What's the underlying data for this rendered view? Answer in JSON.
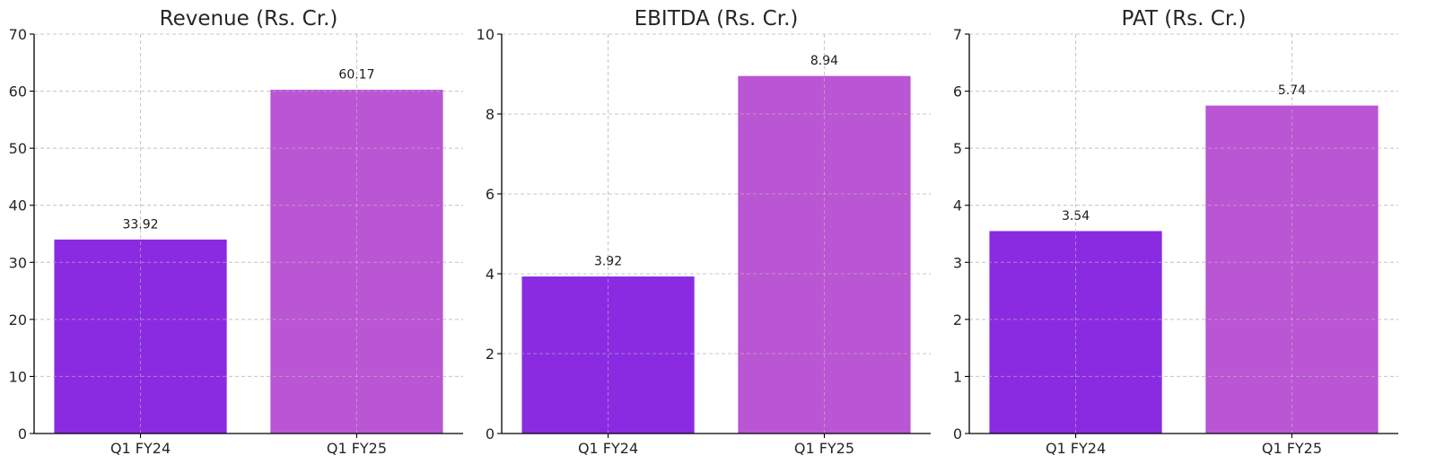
{
  "chart_data": [
    {
      "type": "bar",
      "title": "Revenue (Rs. Cr.)",
      "categories": [
        "Q1 FY24",
        "Q1 FY25"
      ],
      "values": [
        33.92,
        60.17
      ],
      "value_labels": [
        "33.92",
        "60.17"
      ],
      "ylim": [
        0,
        70
      ],
      "yticks": [
        0,
        10,
        20,
        30,
        40,
        50,
        60,
        70
      ],
      "colors": [
        "#8a2be2",
        "#ba55d3"
      ],
      "grid": true,
      "legend": false
    },
    {
      "type": "bar",
      "title": "EBITDA (Rs. Cr.)",
      "categories": [
        "Q1 FY24",
        "Q1 FY25"
      ],
      "values": [
        3.92,
        8.94
      ],
      "value_labels": [
        "3.92",
        "8.94"
      ],
      "ylim": [
        0,
        10
      ],
      "yticks": [
        0,
        2,
        4,
        6,
        8,
        10
      ],
      "colors": [
        "#8a2be2",
        "#ba55d3"
      ],
      "grid": true,
      "legend": false
    },
    {
      "type": "bar",
      "title": "PAT (Rs. Cr.)",
      "categories": [
        "Q1 FY24",
        "Q1 FY25"
      ],
      "values": [
        3.54,
        5.74
      ],
      "value_labels": [
        "3.54",
        "5.74"
      ],
      "ylim": [
        0,
        7
      ],
      "yticks": [
        0,
        1,
        2,
        3,
        4,
        5,
        6,
        7
      ],
      "colors": [
        "#8a2be2",
        "#ba55d3"
      ],
      "grid": true,
      "legend": false
    }
  ]
}
